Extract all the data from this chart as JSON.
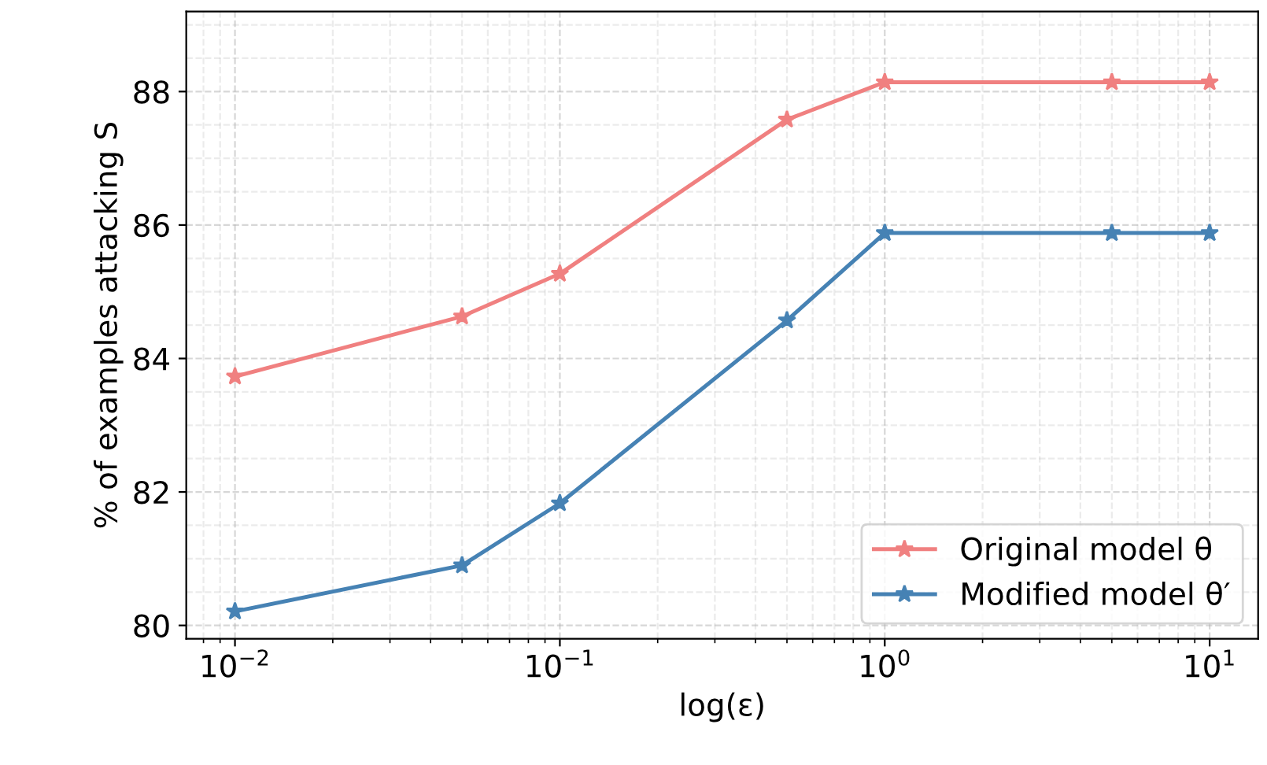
{
  "chart_data": {
    "type": "line",
    "xlabel": "log(ε)",
    "ylabel": "% of examples attacking S",
    "log": "x",
    "grid": true,
    "legend": "bottom right",
    "marker": "star",
    "line_style": "solid",
    "xlim": [
      0.00708,
      14.1
    ],
    "xticks": [
      {
        "value": 0.01,
        "label": "10$^{−2}$"
      },
      {
        "value": 0.1,
        "label": "10$^{−1}$"
      },
      {
        "value": 1,
        "label": "10$^{0}$"
      },
      {
        "value": 10,
        "label": "10$^{1}$"
      }
    ],
    "ylim": [
      79.8,
      89.2
    ],
    "yticks": [
      80,
      82,
      84,
      86,
      88
    ],
    "x": [
      0.01,
      0.05,
      0.1,
      0.5,
      1,
      5,
      10
    ],
    "series": [
      {
        "name": "Original model θ",
        "color": "#f08080",
        "values": [
          83.73,
          84.63,
          85.27,
          87.58,
          88.14,
          88.14,
          88.14
        ]
      },
      {
        "name": "Modified model θ′",
        "color": "#4682b4",
        "values": [
          80.21,
          80.9,
          81.83,
          84.57,
          85.88,
          85.88,
          85.88
        ]
      }
    ]
  }
}
